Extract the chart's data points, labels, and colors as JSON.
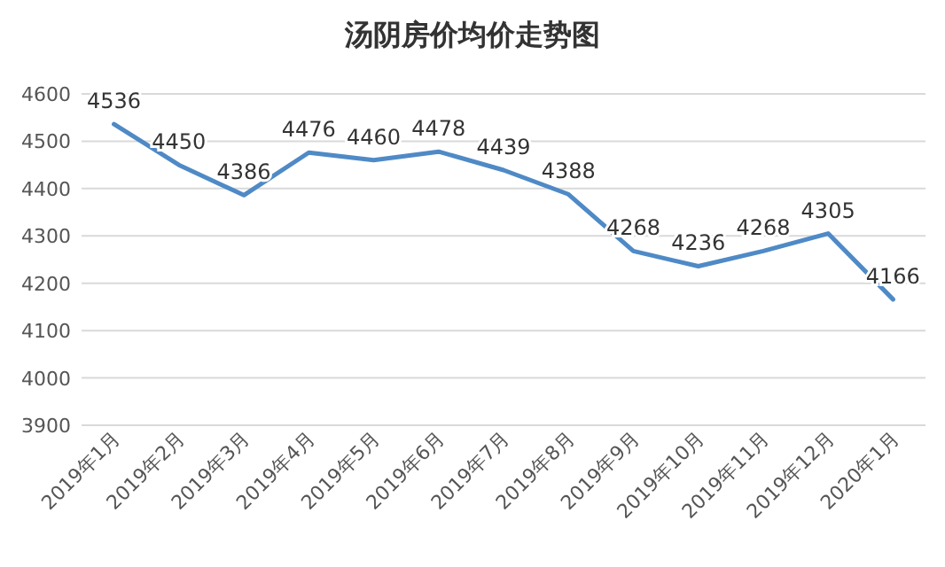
{
  "chart_data": {
    "type": "line",
    "title": "汤阴房价均价走势图",
    "categories": [
      "2019年1月",
      "2019年2月",
      "2019年3月",
      "2019年4月",
      "2019年5月",
      "2019年6月",
      "2019年7月",
      "2019年8月",
      "2019年9月",
      "2019年10月",
      "2019年11月",
      "2019年12月",
      "2020年1月"
    ],
    "values": [
      4536,
      4450,
      4386,
      4476,
      4460,
      4478,
      4439,
      4388,
      4268,
      4236,
      4268,
      4305,
      4166
    ],
    "color": "#4f8ac6",
    "ylim": [
      3900,
      4600
    ],
    "yticks": [
      3900,
      4000,
      4100,
      4200,
      4300,
      4400,
      4500,
      4600
    ],
    "grid": "y",
    "data_labels": true
  }
}
